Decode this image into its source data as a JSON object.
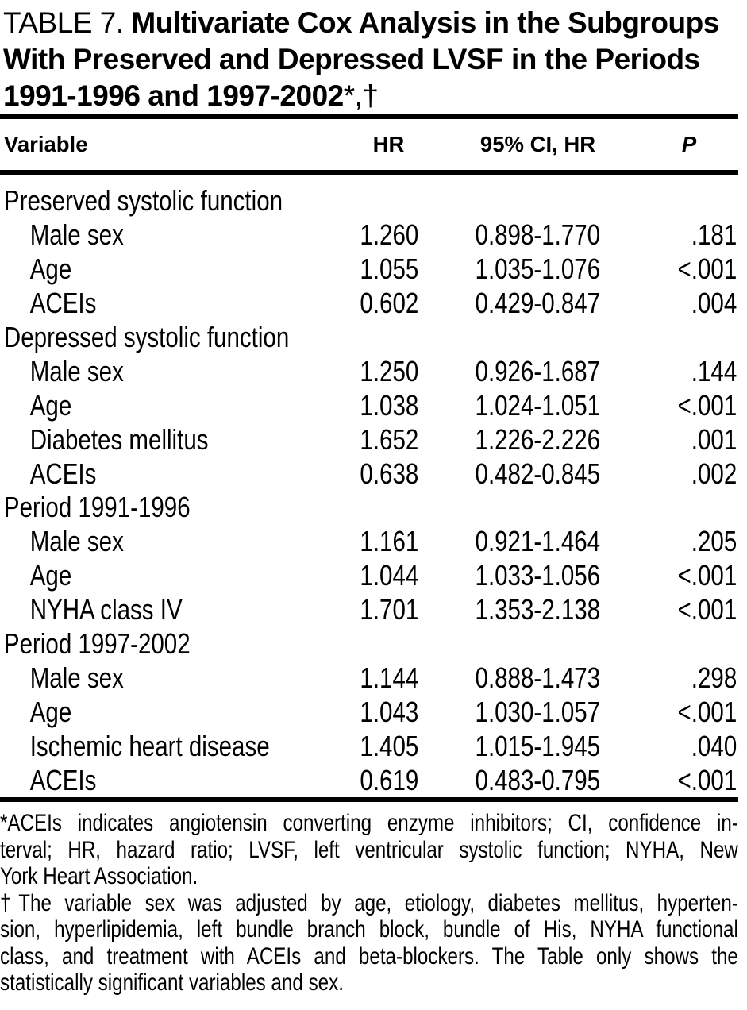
{
  "colors": {
    "text": "#000000",
    "background": "#ffffff",
    "rule": "#000000"
  },
  "title": {
    "prefix": "TABLE 7.",
    "line1_bold": "Multivariate Cox Analysis in the Subgroups",
    "line2_bold": "With Preserved and Depressed LVSF in the Periods",
    "line3_bold": "1991-1996 and 1997-2002",
    "suffix": "*,†"
  },
  "table": {
    "columns": [
      {
        "key": "variable",
        "label": "Variable"
      },
      {
        "key": "hr",
        "label": "HR"
      },
      {
        "key": "ci",
        "label": "95% CI, HR"
      },
      {
        "key": "p",
        "label": "P"
      }
    ],
    "rows": [
      {
        "type": "group",
        "variable": "Preserved systolic function",
        "hr": "",
        "ci": "",
        "p": ""
      },
      {
        "type": "item",
        "variable": "Male sex",
        "hr": "1.260",
        "ci": "0.898-1.770",
        "p": ".181"
      },
      {
        "type": "item",
        "variable": "Age",
        "hr": "1.055",
        "ci": "1.035-1.076",
        "p": "<.001"
      },
      {
        "type": "item",
        "variable": "ACEIs",
        "hr": "0.602",
        "ci": "0.429-0.847",
        "p": ".004"
      },
      {
        "type": "group",
        "variable": "Depressed systolic function",
        "hr": "",
        "ci": "",
        "p": ""
      },
      {
        "type": "item",
        "variable": "Male sex",
        "hr": "1.250",
        "ci": "0.926-1.687",
        "p": ".144"
      },
      {
        "type": "item",
        "variable": "Age",
        "hr": "1.038",
        "ci": "1.024-1.051",
        "p": "<.001"
      },
      {
        "type": "item",
        "variable": "Diabetes mellitus",
        "hr": "1.652",
        "ci": "1.226-2.226",
        "p": ".001"
      },
      {
        "type": "item",
        "variable": "ACEIs",
        "hr": "0.638",
        "ci": "0.482-0.845",
        "p": ".002"
      },
      {
        "type": "group",
        "variable": "Period 1991-1996",
        "hr": "",
        "ci": "",
        "p": ""
      },
      {
        "type": "item",
        "variable": "Male sex",
        "hr": "1.161",
        "ci": "0.921-1.464",
        "p": ".205"
      },
      {
        "type": "item",
        "variable": "Age",
        "hr": "1.044",
        "ci": "1.033-1.056",
        "p": "<.001"
      },
      {
        "type": "item",
        "variable": "NYHA class IV",
        "hr": "1.701",
        "ci": "1.353-2.138",
        "p": "<.001"
      },
      {
        "type": "group",
        "variable": "Period 1997-2002",
        "hr": "",
        "ci": "",
        "p": ""
      },
      {
        "type": "item",
        "variable": "Male sex",
        "hr": "1.144",
        "ci": "0.888-1.473",
        "p": ".298"
      },
      {
        "type": "item",
        "variable": "Age",
        "hr": "1.043",
        "ci": "1.030-1.057",
        "p": "<.001"
      },
      {
        "type": "item",
        "variable": "Ischemic heart disease",
        "hr": "1.405",
        "ci": "1.015-1.945",
        "p": ".040"
      },
      {
        "type": "item",
        "variable": "ACEIs",
        "hr": "0.619",
        "ci": "0.483-0.795",
        "p": "<.001"
      }
    ]
  },
  "footnotes": [
    {
      "lines": [
        "*ACEIs indicates angiotensin converting enzyme inhibitors; CI, confidence in-",
        "terval; HR, hazard ratio; LVSF, left ventricular systolic function; NYHA, New",
        "York Heart Association."
      ]
    },
    {
      "lines": [
        "†The variable sex was adjusted by age, etiology, diabetes mellitus, hyperten-",
        "sion, hyperlipidemia, left bundle branch block, bundle of His, NYHA functional",
        "class, and treatment with ACEIs and beta-blockers. The Table only shows the",
        "statistically significant variables and sex."
      ]
    }
  ]
}
